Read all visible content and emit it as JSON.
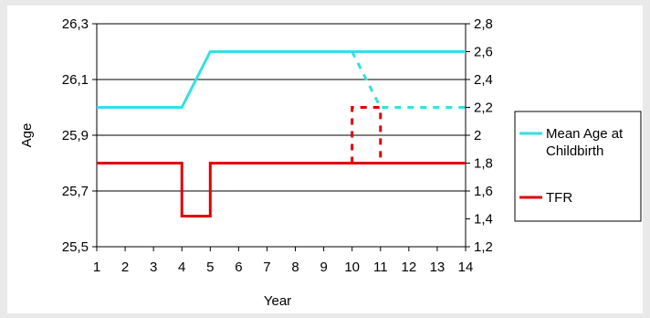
{
  "chart_data": {
    "type": "line",
    "title": "",
    "xlabel": "Year",
    "ylabel": "Age",
    "y2label": "",
    "x_categories": [
      "1",
      "2",
      "3",
      "4",
      "5",
      "6",
      "7",
      "8",
      "9",
      "10",
      "11",
      "12",
      "13",
      "14"
    ],
    "y_ticks": [
      "26,3",
      "26,1",
      "25,9",
      "25,7",
      "25,5"
    ],
    "y_range": [
      25.5,
      26.3
    ],
    "y2_ticks": [
      "2,8",
      "2,6",
      "2,4",
      "2,2",
      "2",
      "1,8",
      "1,6",
      "1,4",
      "1,2"
    ],
    "y2_range": [
      1.2,
      2.8
    ],
    "grid": "horizontal",
    "legend_position": "right",
    "series": [
      {
        "name": "Mean Age at Childbirth",
        "axis": "left",
        "color": "#33e0e0",
        "style": "solid",
        "points": [
          [
            1,
            26.0
          ],
          [
            2,
            26.0
          ],
          [
            3,
            26.0
          ],
          [
            4,
            26.0
          ],
          [
            5,
            26.2
          ],
          [
            6,
            26.2
          ],
          [
            7,
            26.2
          ],
          [
            8,
            26.2
          ],
          [
            9,
            26.2
          ],
          [
            10,
            26.2
          ],
          [
            11,
            26.2
          ],
          [
            12,
            26.2
          ],
          [
            13,
            26.2
          ],
          [
            14,
            26.2
          ]
        ]
      },
      {
        "name": "",
        "axis": "left",
        "color": "#33e0e0",
        "style": "dashed",
        "points": [
          [
            10,
            26.2
          ],
          [
            11,
            26.0
          ],
          [
            12,
            26.0
          ],
          [
            13,
            26.0
          ],
          [
            14,
            26.0
          ]
        ]
      },
      {
        "name": "TFR",
        "axis": "right",
        "color": "#e00000",
        "style": "step",
        "points": [
          [
            1,
            1.8
          ],
          [
            4,
            1.8
          ],
          [
            4,
            1.42
          ],
          [
            5,
            1.42
          ],
          [
            5,
            1.8
          ],
          [
            14,
            1.8
          ]
        ]
      },
      {
        "name": "",
        "axis": "right",
        "color": "#e00000",
        "style": "dashed-step",
        "points": [
          [
            10,
            1.8
          ],
          [
            10,
            2.2
          ],
          [
            11,
            2.2
          ],
          [
            11,
            1.8
          ]
        ]
      }
    ],
    "legend": [
      {
        "lines": [
          "Mean Age at",
          "Childbirth"
        ],
        "color": "#33e0e0"
      },
      {
        "lines": [
          "TFR"
        ],
        "color": "#e00000"
      }
    ]
  }
}
